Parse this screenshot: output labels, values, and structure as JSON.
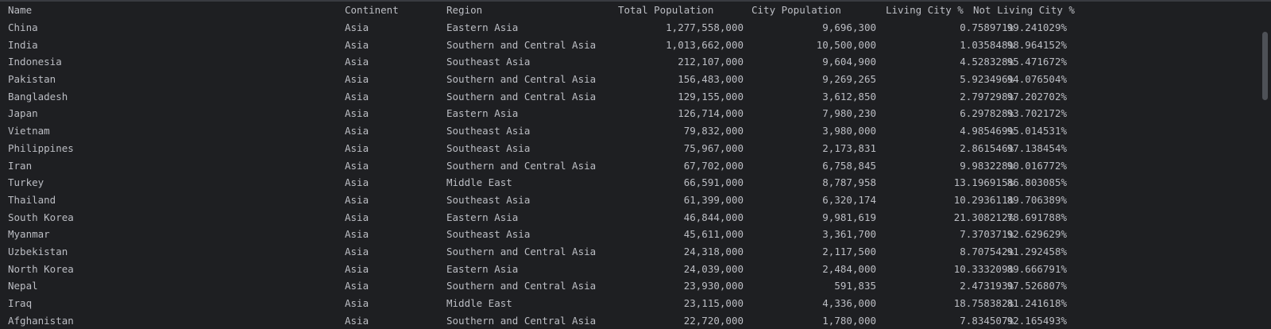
{
  "table": {
    "headers": {
      "name": "Name",
      "continent": "Continent",
      "region": "Region",
      "total_population": "Total Population",
      "city_population": "City Population",
      "living_city": "Living City %",
      "not_living_city": "Not Living City %"
    },
    "rows": [
      {
        "name": "China",
        "continent": "Asia",
        "region": "Eastern Asia",
        "total": "1,277,558,000",
        "city": "9,696,300",
        "living": "0.758971%",
        "not_living": "99.241029%"
      },
      {
        "name": "India",
        "continent": "Asia",
        "region": "Southern and Central Asia",
        "total": "1,013,662,000",
        "city": "10,500,000",
        "living": "1.035848%",
        "not_living": "98.964152%"
      },
      {
        "name": "Indonesia",
        "continent": "Asia",
        "region": "Southeast Asia",
        "total": "212,107,000",
        "city": "9,604,900",
        "living": "4.528328%",
        "not_living": "95.471672%"
      },
      {
        "name": "Pakistan",
        "continent": "Asia",
        "region": "Southern and Central Asia",
        "total": "156,483,000",
        "city": "9,269,265",
        "living": "5.923496%",
        "not_living": "94.076504%"
      },
      {
        "name": "Bangladesh",
        "continent": "Asia",
        "region": "Southern and Central Asia",
        "total": "129,155,000",
        "city": "3,612,850",
        "living": "2.797298%",
        "not_living": "97.202702%"
      },
      {
        "name": "Japan",
        "continent": "Asia",
        "region": "Eastern Asia",
        "total": "126,714,000",
        "city": "7,980,230",
        "living": "6.297828%",
        "not_living": "93.702172%"
      },
      {
        "name": "Vietnam",
        "continent": "Asia",
        "region": "Southeast Asia",
        "total": "79,832,000",
        "city": "3,980,000",
        "living": "4.985469%",
        "not_living": "95.014531%"
      },
      {
        "name": "Philippines",
        "continent": "Asia",
        "region": "Southeast Asia",
        "total": "75,967,000",
        "city": "2,173,831",
        "living": "2.861546%",
        "not_living": "97.138454%"
      },
      {
        "name": "Iran",
        "continent": "Asia",
        "region": "Southern and Central Asia",
        "total": "67,702,000",
        "city": "6,758,845",
        "living": "9.983228%",
        "not_living": "90.016772%"
      },
      {
        "name": "Turkey",
        "continent": "Asia",
        "region": "Middle East",
        "total": "66,591,000",
        "city": "8,787,958",
        "living": "13.196915%",
        "not_living": "86.803085%"
      },
      {
        "name": "Thailand",
        "continent": "Asia",
        "region": "Southeast Asia",
        "total": "61,399,000",
        "city": "6,320,174",
        "living": "10.293611%",
        "not_living": "89.706389%"
      },
      {
        "name": "South Korea",
        "continent": "Asia",
        "region": "Eastern Asia",
        "total": "46,844,000",
        "city": "9,981,619",
        "living": "21.308212%",
        "not_living": "78.691788%"
      },
      {
        "name": "Myanmar",
        "continent": "Asia",
        "region": "Southeast Asia",
        "total": "45,611,000",
        "city": "3,361,700",
        "living": "7.370371%",
        "not_living": "92.629629%"
      },
      {
        "name": "Uzbekistan",
        "continent": "Asia",
        "region": "Southern and Central Asia",
        "total": "24,318,000",
        "city": "2,117,500",
        "living": "8.707542%",
        "not_living": "91.292458%"
      },
      {
        "name": "North Korea",
        "continent": "Asia",
        "region": "Eastern Asia",
        "total": "24,039,000",
        "city": "2,484,000",
        "living": "10.333209%",
        "not_living": "89.666791%"
      },
      {
        "name": "Nepal",
        "continent": "Asia",
        "region": "Southern and Central Asia",
        "total": "23,930,000",
        "city": "591,835",
        "living": "2.473193%",
        "not_living": "97.526807%"
      },
      {
        "name": "Iraq",
        "continent": "Asia",
        "region": "Middle East",
        "total": "23,115,000",
        "city": "4,336,000",
        "living": "18.758382%",
        "not_living": "81.241618%"
      },
      {
        "name": "Afghanistan",
        "continent": "Asia",
        "region": "Southern and Central Asia",
        "total": "22,720,000",
        "city": "1,780,000",
        "living": "7.834507%",
        "not_living": "92.165493%"
      }
    ]
  },
  "colors": {
    "background": "#1e1f22",
    "text": "#bcbec4",
    "scrollbar_thumb": "#4e5157"
  }
}
